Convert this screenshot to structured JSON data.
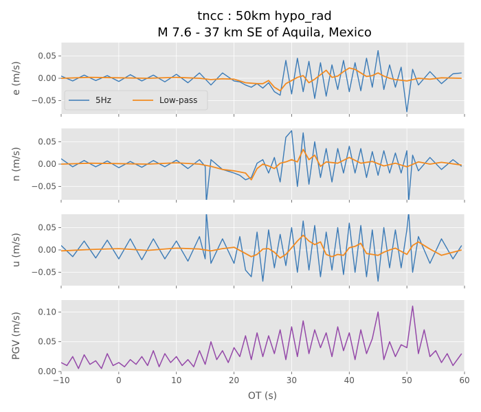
{
  "title_line1": "tncc : 50km hypo_rad",
  "title_line2": "M 7.6 - 37 km SE of Aquila, Mexico",
  "xlabel": "OT (s)",
  "x_ticks": [
    "−10",
    "0",
    "10",
    "20",
    "30",
    "40",
    "50",
    "60"
  ],
  "colors": {
    "panel_bg": "#e5e5e5",
    "grid": "#ffffff",
    "raw": "#3a7ab6",
    "lowpass": "#f28a1f",
    "pgv": "#9448a8"
  },
  "legend": {
    "raw": "5Hz",
    "lowpass": "Low-pass"
  },
  "chart_data": [
    {
      "type": "line",
      "panel": "e",
      "ylabel": "e (m/s)",
      "xlim": [
        -10,
        60
      ],
      "ylim": [
        -0.08,
        0.08
      ],
      "yticks": [
        "0.05",
        "0.00",
        "−0.05"
      ],
      "legend_position": "lower-left",
      "series": [
        {
          "name": "5Hz",
          "x": [
            -10,
            -8,
            -6,
            -4,
            -2,
            0,
            2,
            4,
            6,
            8,
            10,
            12,
            14,
            16,
            18,
            20,
            21,
            22,
            23,
            24,
            25,
            26,
            27,
            28,
            29,
            30,
            31,
            32,
            33,
            34,
            35,
            36,
            37,
            38,
            39,
            40,
            41,
            42,
            43,
            44,
            45,
            46,
            47,
            48,
            49,
            50,
            51,
            52,
            54,
            56,
            58,
            59.5
          ],
          "y": [
            0.005,
            -0.006,
            0.007,
            -0.005,
            0.006,
            -0.007,
            0.008,
            -0.006,
            0.007,
            -0.008,
            0.009,
            -0.01,
            0.012,
            -0.015,
            0.012,
            -0.006,
            -0.008,
            -0.015,
            -0.02,
            -0.012,
            -0.022,
            -0.01,
            -0.03,
            -0.038,
            0.04,
            -0.035,
            0.045,
            -0.03,
            0.038,
            -0.045,
            0.035,
            -0.04,
            0.03,
            -0.025,
            0.04,
            -0.03,
            0.035,
            -0.028,
            0.045,
            -0.02,
            0.062,
            -0.025,
            0.03,
            -0.02,
            0.025,
            -0.075,
            0.02,
            -0.015,
            0.015,
            -0.012,
            0.01,
            0.012
          ]
        },
        {
          "name": "Low-pass",
          "x": [
            -10,
            -5,
            0,
            5,
            10,
            14,
            16,
            18,
            20,
            21,
            22,
            24,
            25,
            26,
            27,
            28,
            29,
            30,
            31,
            32,
            33,
            34,
            35,
            36,
            37,
            38,
            39,
            40,
            41,
            42,
            43,
            44,
            45,
            46,
            47,
            48,
            50,
            52,
            54,
            56,
            59.5
          ],
          "y": [
            0,
            0.002,
            0.001,
            0,
            0.002,
            0,
            -0.003,
            -0.001,
            -0.002,
            -0.006,
            -0.01,
            -0.012,
            -0.012,
            -0.005,
            -0.02,
            -0.028,
            -0.012,
            -0.005,
            0.002,
            0.006,
            -0.01,
            -0.002,
            0.008,
            0.018,
            0.002,
            0.005,
            0.015,
            0.023,
            0.02,
            0.012,
            0.004,
            0.006,
            0.012,
            0.005,
            0,
            -0.003,
            -0.006,
            0,
            -0.002,
            0.001,
            0
          ]
        }
      ]
    },
    {
      "type": "line",
      "panel": "n",
      "ylabel": "n (m/s)",
      "xlim": [
        -10,
        60
      ],
      "ylim": [
        -0.08,
        0.08
      ],
      "yticks": [
        "0.05",
        "0.00",
        "−0.05"
      ],
      "series": [
        {
          "name": "5Hz",
          "x": [
            -10,
            -8,
            -6,
            -4,
            -2,
            0,
            2,
            4,
            6,
            8,
            10,
            12,
            14,
            15,
            15.2,
            16,
            18,
            20,
            21,
            22,
            23,
            24,
            25,
            26,
            27,
            28,
            29,
            30,
            31,
            32,
            33,
            34,
            35,
            36,
            37,
            38,
            39,
            40,
            41,
            42,
            43,
            44,
            45,
            46,
            47,
            48,
            49,
            50,
            50.3,
            51,
            52,
            54,
            56,
            58,
            59.5
          ],
          "y": [
            0.012,
            -0.006,
            0.008,
            -0.006,
            0.007,
            -0.008,
            0.006,
            -0.007,
            0.008,
            -0.006,
            0.009,
            -0.01,
            0.01,
            -0.005,
            -0.085,
            0.01,
            -0.012,
            -0.02,
            -0.025,
            -0.035,
            -0.03,
            0.002,
            0.01,
            -0.02,
            0.015,
            -0.04,
            0.06,
            0.075,
            -0.05,
            0.07,
            -0.045,
            0.05,
            -0.03,
            0.035,
            -0.04,
            0.035,
            -0.02,
            0.04,
            -0.02,
            0.035,
            -0.03,
            0.028,
            -0.025,
            0.03,
            -0.02,
            0.025,
            -0.02,
            0.03,
            -0.085,
            0.02,
            -0.015,
            0.015,
            -0.012,
            0.01,
            -0.005
          ]
        },
        {
          "name": "Low-pass",
          "x": [
            -10,
            -5,
            0,
            5,
            10,
            14,
            16,
            18,
            20,
            22,
            23,
            24,
            25,
            26,
            27,
            28,
            29,
            30,
            31,
            32,
            33,
            34,
            35,
            36,
            38,
            40,
            42,
            44,
            46,
            48,
            50,
            52,
            54,
            56,
            59.5
          ],
          "y": [
            0,
            0.002,
            0.001,
            0,
            0.003,
            0,
            -0.005,
            -0.012,
            -0.015,
            -0.02,
            -0.035,
            -0.01,
            0,
            -0.004,
            -0.01,
            0.002,
            0.005,
            0.01,
            0.005,
            0.033,
            0.01,
            0.02,
            -0.005,
            0.005,
            0.002,
            0.015,
            0.002,
            0.006,
            -0.004,
            0.002,
            -0.006,
            0.005,
            0,
            0.004,
            -0.002
          ]
        }
      ]
    },
    {
      "type": "line",
      "panel": "u",
      "ylabel": "u (m/s)",
      "xlim": [
        -10,
        60
      ],
      "ylim": [
        -0.08,
        0.08
      ],
      "yticks": [
        "0.05",
        "0.00",
        "−0.05"
      ],
      "series": [
        {
          "name": "5Hz",
          "x": [
            -10,
            -8,
            -6,
            -4,
            -2,
            0,
            2,
            4,
            6,
            8,
            10,
            12,
            14,
            15,
            15.2,
            16,
            18,
            20,
            21,
            22,
            23,
            24,
            25,
            26,
            27,
            28,
            29,
            30,
            31,
            32,
            33,
            34,
            35,
            36,
            37,
            38,
            39,
            40,
            41,
            42,
            43,
            44,
            45,
            46,
            47,
            48,
            49,
            50,
            50.3,
            51,
            52,
            54,
            56,
            58,
            59.5
          ],
          "y": [
            0.01,
            -0.015,
            0.02,
            -0.018,
            0.022,
            -0.02,
            0.025,
            -0.022,
            0.025,
            -0.02,
            0.02,
            -0.025,
            0.03,
            -0.02,
            0.085,
            -0.03,
            0.025,
            -0.03,
            0.03,
            -0.045,
            -0.06,
            0.04,
            -0.07,
            0.045,
            -0.04,
            0.035,
            -0.035,
            0.05,
            -0.05,
            0.065,
            -0.045,
            0.055,
            -0.06,
            0.04,
            -0.045,
            0.05,
            -0.055,
            0.06,
            -0.05,
            0.055,
            -0.06,
            0.045,
            -0.07,
            0.05,
            -0.04,
            0.045,
            -0.04,
            0.045,
            0.085,
            -0.05,
            0.03,
            -0.03,
            0.025,
            -0.02,
            0.01
          ]
        },
        {
          "name": "Low-pass",
          "x": [
            -10,
            -5,
            0,
            5,
            10,
            14,
            16,
            18,
            20,
            22,
            23,
            24,
            25,
            26,
            27,
            28,
            29,
            30,
            31,
            32,
            33,
            34,
            35,
            36,
            37,
            38,
            39,
            40,
            41,
            42,
            43,
            44,
            45,
            46,
            47,
            48,
            50,
            51,
            52,
            54,
            56,
            59.5
          ],
          "y": [
            -0.002,
            0.001,
            0.003,
            -0.001,
            0.004,
            0.002,
            -0.002,
            0.003,
            0.006,
            -0.008,
            -0.015,
            -0.01,
            0.002,
            0.003,
            -0.005,
            -0.018,
            -0.01,
            0.005,
            0.02,
            0.033,
            0.02,
            0.012,
            0.018,
            -0.01,
            -0.015,
            -0.01,
            -0.012,
            0.005,
            0.008,
            0.015,
            -0.008,
            -0.01,
            -0.012,
            -0.005,
            0,
            0.004,
            -0.01,
            0.01,
            0.018,
            0.002,
            -0.012,
            0
          ]
        }
      ]
    },
    {
      "type": "line",
      "panel": "pgv",
      "ylabel": "PGV (m/s)",
      "xlim": [
        -10,
        60
      ],
      "ylim": [
        0,
        0.12
      ],
      "yticks": [
        "0.10",
        "0.05",
        "0.00"
      ],
      "series": [
        {
          "name": "PGV",
          "x": [
            -10,
            -9,
            -8,
            -7,
            -6,
            -5,
            -4,
            -3,
            -2,
            -1,
            0,
            1,
            2,
            3,
            4,
            5,
            6,
            7,
            8,
            9,
            10,
            11,
            12,
            13,
            14,
            15,
            16,
            17,
            18,
            19,
            20,
            21,
            22,
            23,
            24,
            25,
            26,
            27,
            28,
            29,
            30,
            31,
            32,
            33,
            34,
            35,
            36,
            37,
            38,
            39,
            40,
            41,
            42,
            43,
            44,
            45,
            46,
            47,
            48,
            49,
            50,
            51,
            52,
            53,
            54,
            55,
            56,
            57,
            58,
            59.5
          ],
          "y": [
            0.015,
            0.01,
            0.025,
            0.005,
            0.028,
            0.012,
            0.018,
            0.005,
            0.03,
            0.01,
            0.015,
            0.008,
            0.02,
            0.012,
            0.025,
            0.01,
            0.035,
            0.008,
            0.03,
            0.015,
            0.025,
            0.01,
            0.02,
            0.008,
            0.035,
            0.012,
            0.05,
            0.02,
            0.035,
            0.015,
            0.04,
            0.025,
            0.06,
            0.02,
            0.065,
            0.025,
            0.06,
            0.03,
            0.07,
            0.02,
            0.075,
            0.025,
            0.085,
            0.03,
            0.07,
            0.04,
            0.065,
            0.025,
            0.075,
            0.035,
            0.065,
            0.02,
            0.07,
            0.03,
            0.055,
            0.1,
            0.02,
            0.05,
            0.025,
            0.045,
            0.04,
            0.11,
            0.03,
            0.07,
            0.025,
            0.035,
            0.015,
            0.03,
            0.01,
            0.03
          ]
        }
      ]
    }
  ]
}
